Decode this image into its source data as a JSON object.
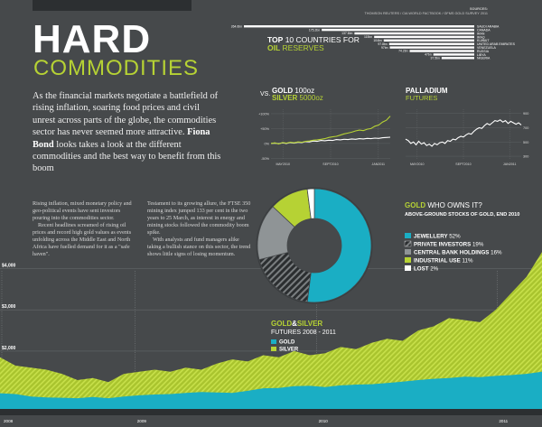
{
  "header": {
    "title_main": "HARD",
    "title_sub": "COMMODITIES",
    "sources_label": "SOURCES:",
    "sources_text": "THOMSON REUTERS / CIA WORLD FACTBOOK / GFMS GOLD SURVEY 2011"
  },
  "intro": {
    "lead": "As the financial markets negotiate a battlefield of rising inflation, soaring food prices and civil unrest across parts of the globe, the commodities sector has never seemed more attractive.",
    "author": "Fiona Bond",
    "tail": " looks takes a look at the different commodities and the best way to benefit from this boom"
  },
  "body": {
    "col1": [
      "Rising inflation, mixed monetary policy and geo-political events have sent investors pouring into the commodities sector.",
      "Recent headlines screamed of rising oil prices and record high gold values as events unfolding across the Middle East and North Africa have fuelled demand for it as a \"safe haven\"."
    ],
    "col2": [
      "Testament to its growing allure, the FTSE 350 mining index jumped 133 per cent in the two years to 25 March, as interest in energy and mining stocks followed the commodity boom spike.",
      "With analysts and fund managers alike taking a bullish stance on this sector, the trend shows little signs of losing momentum."
    ]
  },
  "oil": {
    "title_lead": "TOP",
    "title_rest": " 10 COUNTRIES FOR",
    "title_line2": "OIL",
    "title_line2_rest": " RESERVES"
  },
  "gold_silver_small": {
    "prefix": "VS.",
    "gold_label": "GOLD",
    "gold_unit": " 100oz",
    "silver_label": "SILVER",
    "silver_unit": " 5000oz"
  },
  "palladium": {
    "title": "PALLADIUM",
    "subtitle": "FUTURES"
  },
  "gold_owner": {
    "title_gold": "GOLD",
    "title_rest": " WHO OWNS IT?",
    "subtitle": "ABOVE-GROUND STOCKS OF GOLD, END 2010"
  },
  "futures": {
    "title_gold": "GOLD",
    "title_amp": "&",
    "title_silver": "SILVER",
    "subtitle": "FUTURES 2008 - 2011"
  },
  "colors": {
    "background": "#46494b",
    "gold": "#b6d234",
    "silver": "#1aaec4",
    "grey": "#8f9496",
    "white": "#ffffff"
  },
  "chart_data": [
    {
      "type": "bar",
      "orientation": "horizontal",
      "categories": [
        "SAUDI ARABIA",
        "CANADA",
        "IRAN",
        "IRAQ",
        "KUWAIT",
        "UNITED ARAB EMIRATES",
        "VENEZUELA",
        "RUSSIA",
        "LIBYA",
        "NIGERIA"
      ],
      "values": [
        264.6,
        175.2,
        137.6,
        115.0,
        104.0,
        97.8,
        97.0,
        74.2,
        47.0,
        37.5
      ],
      "value_labels": [
        "264.6bn",
        "175.2bn",
        "137.6bn",
        "115bn",
        "104bn",
        "97.8bn",
        "97bn",
        "74.2bn",
        "47bn",
        "37.5bn"
      ]
    },
    {
      "type": "line",
      "ylabels": [
        "+100%",
        "+50%",
        "0%",
        "-50%"
      ],
      "yticks": [
        100,
        50,
        0,
        -50
      ],
      "ylim": [
        -55,
        115
      ],
      "xlabels": [
        "MAY2010",
        "SEPT2010",
        "JAN2011"
      ],
      "xticks": [
        0.1,
        0.5,
        0.9
      ],
      "series": [
        {
          "name": "GOLD",
          "color": "#ffffff",
          "values": [
            0,
            1,
            -1,
            2,
            0,
            3,
            1,
            4,
            3,
            6,
            5,
            8,
            7,
            10,
            9,
            11,
            10,
            13,
            12,
            14,
            13,
            15,
            14,
            16,
            15,
            17,
            16,
            18,
            17,
            19,
            20,
            21
          ]
        },
        {
          "name": "SILVER",
          "color": "#b6d234",
          "values": [
            0,
            2,
            -2,
            3,
            1,
            4,
            2,
            5,
            4,
            7,
            8,
            11,
            12,
            14,
            16,
            20,
            22,
            24,
            28,
            32,
            35,
            38,
            42,
            45,
            43,
            48,
            50,
            58,
            62,
            72,
            78,
            92
          ]
        }
      ]
    },
    {
      "type": "line",
      "ylabels": [
        "900",
        "700",
        "500",
        "300"
      ],
      "yticks": [
        900,
        700,
        500,
        300
      ],
      "ylim": [
        250,
        960
      ],
      "xlabels": [
        "MAY2010",
        "SEPT2010",
        "JAN2011"
      ],
      "xticks": [
        0.1,
        0.5,
        0.9
      ],
      "series": [
        {
          "name": "PALLADIUM",
          "color": "#ffffff",
          "values": [
            540,
            520,
            480,
            500,
            460,
            510,
            470,
            490,
            450,
            470,
            440,
            480,
            460,
            490,
            500,
            480,
            520,
            510,
            540,
            530,
            560,
            580,
            570,
            600,
            620,
            610,
            650,
            680,
            700,
            690,
            730,
            760,
            740,
            770,
            800,
            790,
            810,
            780,
            800,
            760,
            790,
            770,
            750,
            770,
            740
          ]
        }
      ]
    },
    {
      "type": "pie",
      "donut": true,
      "categories": [
        "JEWELLERY",
        "PRIVATE INVESTORS",
        "CENTRAL BANK HOLDINGS",
        "INDUSTRIAL USE",
        "LOST"
      ],
      "values": [
        52,
        19,
        16,
        11,
        2
      ],
      "labels": [
        "52%",
        "19%",
        "16%",
        "11%",
        "2%"
      ]
    },
    {
      "type": "area",
      "ylabels": [
        "$4,000",
        "$3,000",
        "$2,000",
        "$1,000"
      ],
      "yticks": [
        4000,
        3000,
        2000,
        1000
      ],
      "ylim": [
        600,
        4600
      ],
      "xlabels": [
        "2008",
        "2009",
        "2010",
        "2011"
      ],
      "xticks": [
        0.0,
        0.247,
        0.583,
        0.917
      ],
      "series": [
        {
          "name": "GOLD",
          "color": "#1aaec4",
          "values": [
            980,
            960,
            900,
            880,
            870,
            860,
            890,
            860,
            900,
            930,
            950,
            960,
            990,
            1010,
            1000,
            990,
            1040,
            1100,
            1110,
            1150,
            1160,
            1130,
            1170,
            1190,
            1200,
            1230,
            1260,
            1300,
            1330,
            1350,
            1380,
            1370,
            1400,
            1420,
            1450,
            1500
          ]
        },
        {
          "name": "SILVER",
          "color": "#b6d234",
          "values": [
            1850,
            1650,
            1600,
            1550,
            1450,
            1300,
            1350,
            1250,
            1450,
            1500,
            1550,
            1500,
            1600,
            1550,
            1700,
            1800,
            1750,
            1900,
            1850,
            2000,
            1900,
            1950,
            2100,
            2050,
            2200,
            2300,
            2250,
            2500,
            2600,
            2800,
            2750,
            2700,
            3000,
            3400,
            3800,
            4400
          ]
        }
      ]
    }
  ]
}
